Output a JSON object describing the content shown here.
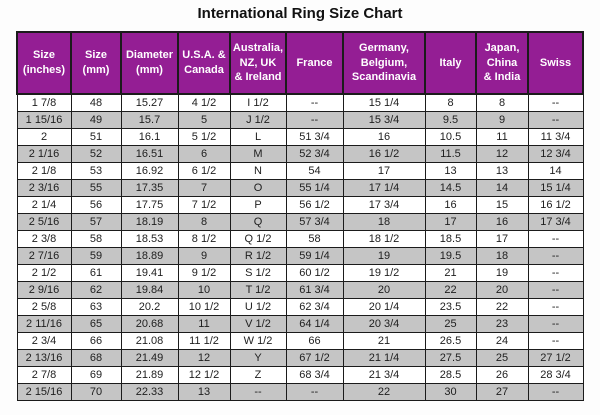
{
  "page": {
    "title": "International Ring Size Chart"
  },
  "colors": {
    "header_bg": "#941e94",
    "header_text": "#ffffff",
    "row_alt_bg": "#c5c5c5",
    "border": "#1b1b1b"
  },
  "chart_data": {
    "type": "table",
    "title": "International Ring Size Chart",
    "columns": [
      "Size\n(inches)",
      "Size\n(mm)",
      "Diameter\n(mm)",
      "U.S.A. &\nCanada",
      "Australia,\nNZ, UK\n& Ireland",
      "France",
      "Germany,\nBelgium,\nScandinavia",
      "Italy",
      "Japan,\nChina\n& India",
      "Swiss"
    ],
    "rows": [
      [
        "1 7/8",
        "48",
        "15.27",
        "4 1/2",
        "I 1/2",
        "--",
        "15 1/4",
        "8",
        "8",
        "--"
      ],
      [
        "1 15/16",
        "49",
        "15.7",
        "5",
        "J 1/2",
        "--",
        "15 3/4",
        "9.5",
        "9",
        "--"
      ],
      [
        "2",
        "51",
        "16.1",
        "5 1/2",
        "L",
        "51 3/4",
        "16",
        "10.5",
        "11",
        "11 3/4"
      ],
      [
        "2 1/16",
        "52",
        "16.51",
        "6",
        "M",
        "52 3/4",
        "16 1/2",
        "11.5",
        "12",
        "12 3/4"
      ],
      [
        "2 1/8",
        "53",
        "16.92",
        "6 1/2",
        "N",
        "54",
        "17",
        "13",
        "13",
        "14"
      ],
      [
        "2 3/16",
        "55",
        "17.35",
        "7",
        "O",
        "55 1/4",
        "17 1/4",
        "14.5",
        "14",
        "15 1/4"
      ],
      [
        "2 1/4",
        "56",
        "17.75",
        "7 1/2",
        "P",
        "56 1/2",
        "17 3/4",
        "16",
        "15",
        "16 1/2"
      ],
      [
        "2 5/16",
        "57",
        "18.19",
        "8",
        "Q",
        "57 3/4",
        "18",
        "17",
        "16",
        "17 3/4"
      ],
      [
        "2 3/8",
        "58",
        "18.53",
        "8 1/2",
        "Q 1/2",
        "58",
        "18 1/2",
        "18.5",
        "17",
        "--"
      ],
      [
        "2 7/16",
        "59",
        "18.89",
        "9",
        "R 1/2",
        "59 1/4",
        "19",
        "19.5",
        "18",
        "--"
      ],
      [
        "2 1/2",
        "61",
        "19.41",
        "9 1/2",
        "S 1/2",
        "60 1/2",
        "19 1/2",
        "21",
        "19",
        "--"
      ],
      [
        "2 9/16",
        "62",
        "19.84",
        "10",
        "T 1/2",
        "61 3/4",
        "20",
        "22",
        "20",
        "--"
      ],
      [
        "2 5/8",
        "63",
        "20.2",
        "10 1/2",
        "U 1/2",
        "62 3/4",
        "20 1/4",
        "23.5",
        "22",
        "--"
      ],
      [
        "2 11/16",
        "65",
        "20.68",
        "11",
        "V 1/2",
        "64 1/4",
        "20 3/4",
        "25",
        "23",
        "--"
      ],
      [
        "2 3/4",
        "66",
        "21.08",
        "11 1/2",
        "W 1/2",
        "66",
        "21",
        "26.5",
        "24",
        "--"
      ],
      [
        "2 13/16",
        "68",
        "21.49",
        "12",
        "Y",
        "67 1/2",
        "21 1/4",
        "27.5",
        "25",
        "27 1/2"
      ],
      [
        "2 7/8",
        "69",
        "21.89",
        "12 1/2",
        "Z",
        "68 3/4",
        "21 3/4",
        "28.5",
        "26",
        "28 3/4"
      ],
      [
        "2 15/16",
        "70",
        "22.33",
        "13",
        "--",
        "--",
        "22",
        "30",
        "27",
        "--"
      ]
    ]
  }
}
